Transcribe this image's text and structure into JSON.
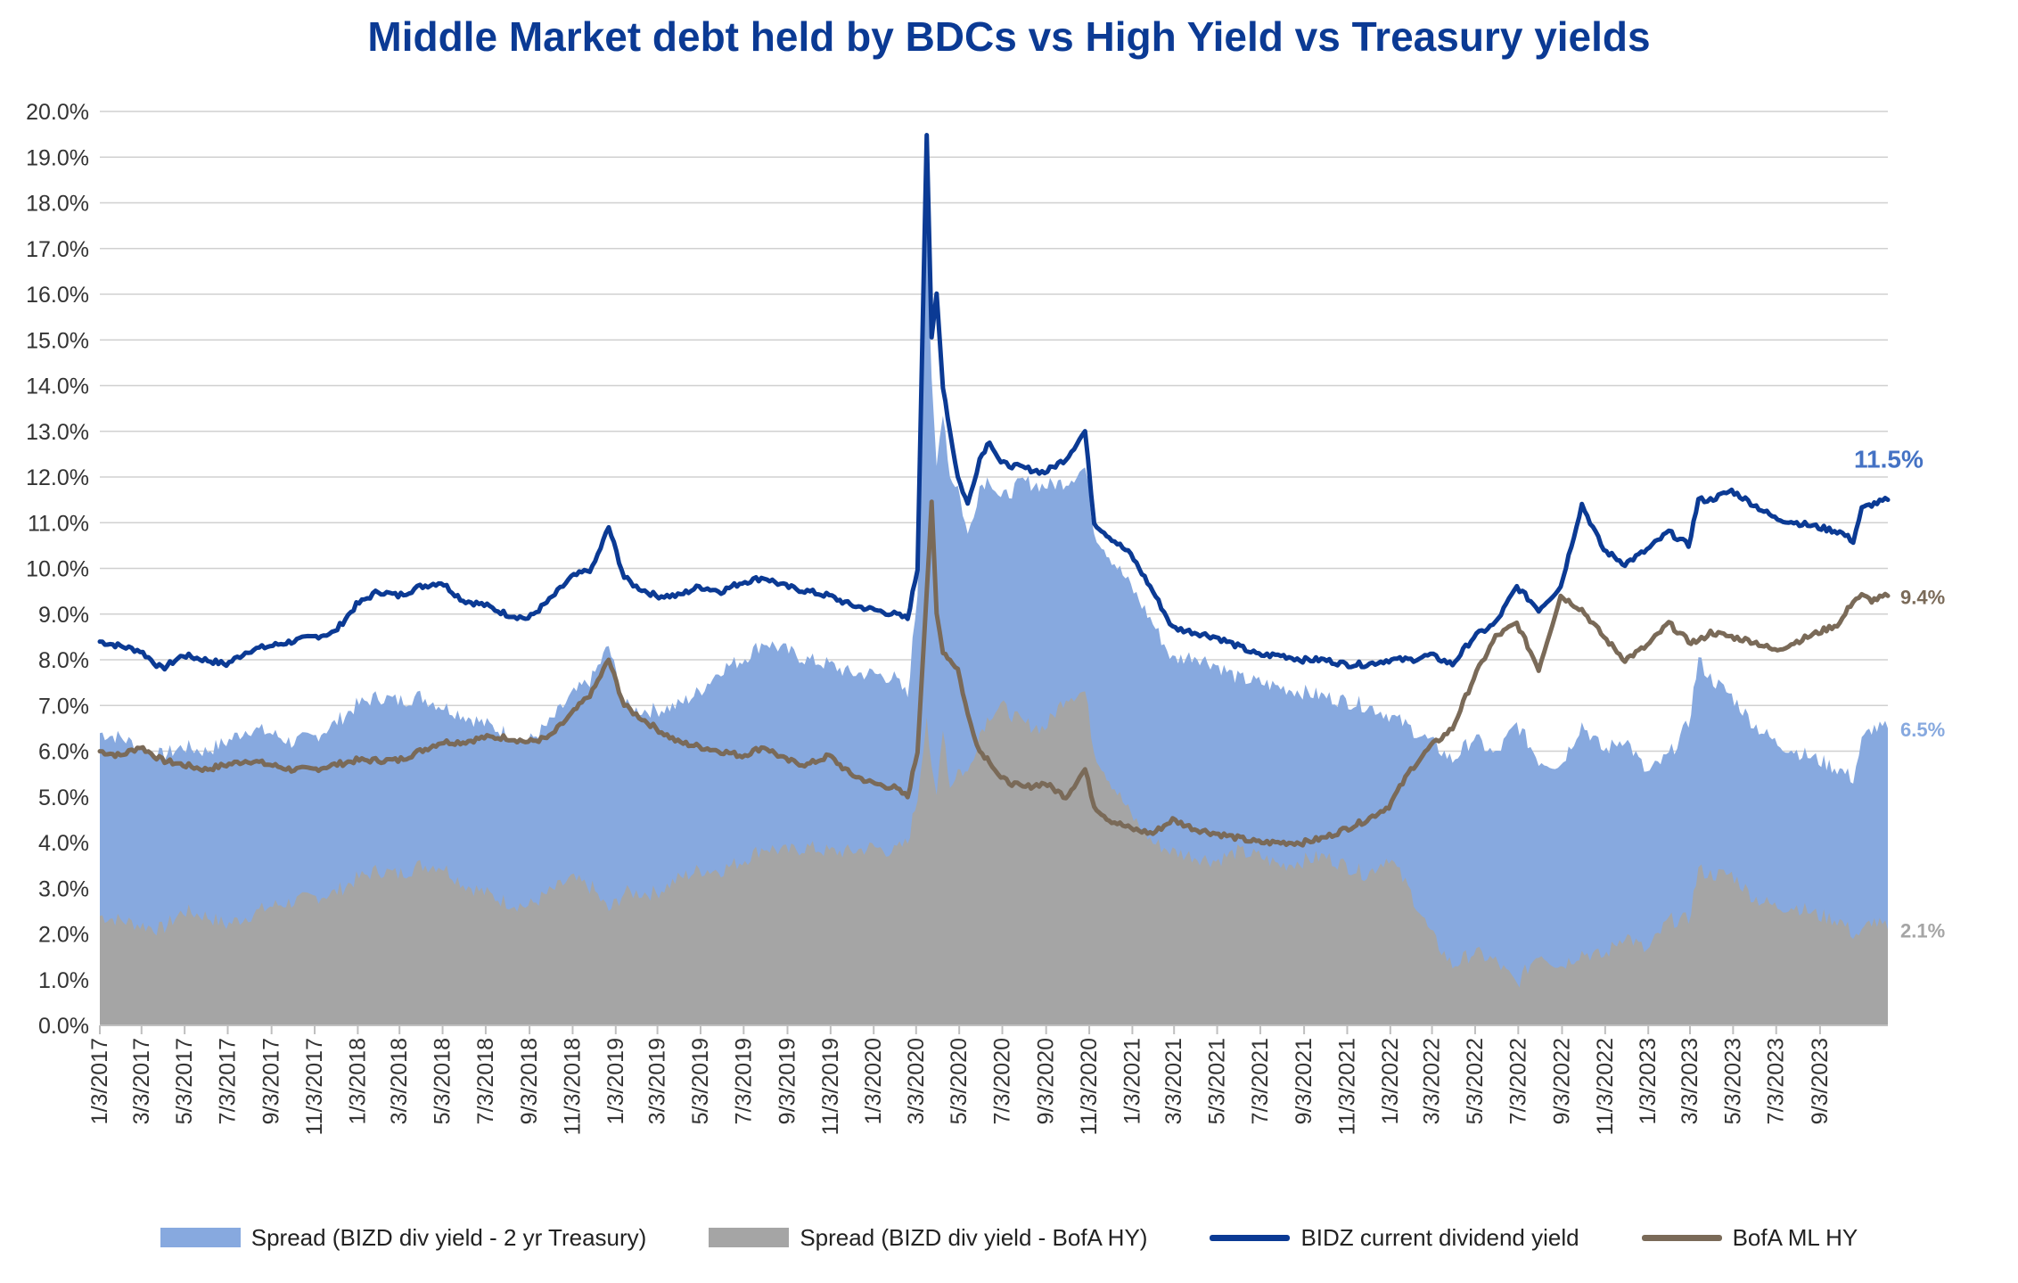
{
  "chart_data": {
    "type": "area",
    "title": "Middle Market debt held by BDCs vs High Yield vs Treasury yields",
    "ylim": [
      0,
      20
    ],
    "y_ticks": [
      "20.0%",
      "19.0%",
      "18.0%",
      "17.0%",
      "16.0%",
      "15.0%",
      "14.0%",
      "13.0%",
      "12.0%",
      "11.0%",
      "10.0%",
      "9.0%",
      "8.0%",
      "7.0%",
      "6.0%",
      "5.0%",
      "4.0%",
      "3.0%",
      "2.0%",
      "1.0%",
      "0.0%"
    ],
    "x_ticks": [
      "1/3/2017",
      "3/3/2017",
      "5/3/2017",
      "7/3/2017",
      "9/3/2017",
      "11/3/2017",
      "1/3/2018",
      "3/3/2018",
      "5/3/2018",
      "7/3/2018",
      "9/3/2018",
      "11/3/2018",
      "1/3/2019",
      "3/3/2019",
      "5/3/2019",
      "7/3/2019",
      "9/3/2019",
      "11/3/2019",
      "1/3/2020",
      "3/3/2020",
      "5/3/2020",
      "7/3/2020",
      "9/3/2020",
      "11/3/2020",
      "1/3/2021",
      "3/3/2021",
      "5/3/2021",
      "7/3/2021",
      "9/3/2021",
      "11/3/2021",
      "1/3/2022",
      "3/3/2022",
      "5/3/2022",
      "7/3/2022",
      "9/3/2022",
      "11/3/2022",
      "1/3/2023",
      "3/3/2023",
      "5/3/2023",
      "7/3/2023",
      "9/3/2023"
    ],
    "x_range": [
      "1/3/2017",
      "12/8/2023"
    ],
    "grid": true,
    "legend_position": "bottom",
    "series": [
      {
        "name": "Spread (BIZD div yield - 2 yr Treasury)",
        "kind": "area",
        "color": "#87A9DF",
        "x": [
          "1/3/2017",
          "2/1/2017",
          "3/1/2017",
          "4/1/2017",
          "5/1/2017",
          "6/1/2017",
          "7/1/2017",
          "8/1/2017",
          "9/1/2017",
          "10/1/2017",
          "11/1/2017",
          "12/1/2017",
          "1/1/2018",
          "2/1/2018",
          "3/1/2018",
          "4/1/2018",
          "5/1/2018",
          "6/1/2018",
          "7/1/2018",
          "8/1/2018",
          "9/1/2018",
          "10/1/2018",
          "11/1/2018",
          "12/1/2018",
          "12/24/2018",
          "1/15/2019",
          "2/1/2019",
          "3/1/2019",
          "4/1/2019",
          "5/1/2019",
          "6/1/2019",
          "7/1/2019",
          "8/1/2019",
          "9/1/2019",
          "10/1/2019",
          "11/1/2019",
          "12/1/2019",
          "1/1/2020",
          "2/1/2020",
          "2/20/2020",
          "3/5/2020",
          "3/18/2020",
          "3/25/2020",
          "4/1/2020",
          "4/10/2020",
          "4/20/2020",
          "5/1/2020",
          "5/15/2020",
          "6/1/2020",
          "6/15/2020",
          "7/1/2020",
          "8/1/2020",
          "9/1/2020",
          "10/1/2020",
          "10/28/2020",
          "11/10/2020",
          "12/1/2020",
          "1/1/2021",
          "2/1/2021",
          "3/1/2021",
          "4/1/2021",
          "5/1/2021",
          "6/1/2021",
          "7/1/2021",
          "8/1/2021",
          "9/1/2021",
          "10/1/2021",
          "11/1/2021",
          "12/1/2021",
          "1/1/2022",
          "2/1/2022",
          "3/1/2022",
          "4/1/2022",
          "5/1/2022",
          "6/1/2022",
          "7/1/2022",
          "8/1/2022",
          "9/1/2022",
          "10/1/2022",
          "11/1/2022",
          "12/1/2022",
          "1/1/2023",
          "2/1/2023",
          "3/1/2023",
          "3/15/2023",
          "4/1/2023",
          "5/1/2023",
          "6/1/2023",
          "7/1/2023",
          "8/1/2023",
          "9/1/2023",
          "10/1/2023",
          "10/20/2023",
          "11/1/2023",
          "11/15/2023",
          "12/8/2023"
        ],
        "values": [
          6.4,
          6.3,
          6.1,
          5.9,
          6.1,
          6.0,
          6.2,
          6.5,
          6.4,
          6.2,
          6.3,
          6.6,
          7.0,
          7.2,
          7.1,
          7.2,
          7.0,
          6.8,
          6.6,
          6.4,
          6.2,
          6.6,
          7.2,
          7.6,
          8.3,
          7.0,
          6.9,
          6.9,
          7.0,
          7.3,
          7.8,
          8.0,
          8.4,
          8.2,
          8.0,
          7.9,
          7.7,
          7.7,
          7.6,
          7.2,
          9.5,
          17.5,
          14.0,
          12.2,
          13.5,
          12.0,
          11.8,
          10.7,
          11.8,
          12.0,
          11.5,
          11.9,
          11.8,
          11.9,
          12.2,
          10.8,
          10.3,
          9.6,
          8.8,
          8.0,
          8.1,
          7.9,
          7.6,
          7.5,
          7.4,
          7.3,
          7.2,
          7.1,
          7.0,
          6.8,
          6.5,
          6.2,
          5.8,
          6.3,
          5.9,
          6.6,
          5.8,
          5.7,
          6.6,
          6.0,
          6.3,
          5.5,
          5.9,
          6.6,
          8.0,
          7.6,
          7.2,
          6.6,
          6.2,
          6.0,
          5.8,
          5.6,
          5.4,
          6.2,
          6.5,
          6.5
        ]
      },
      {
        "name": "Spread (BIZD div yield - BofA HY)",
        "kind": "area",
        "color": "#A5A5A5",
        "x": [
          "1/3/2017",
          "2/1/2017",
          "3/1/2017",
          "4/1/2017",
          "5/1/2017",
          "6/1/2017",
          "7/1/2017",
          "8/1/2017",
          "9/1/2017",
          "10/1/2017",
          "11/1/2017",
          "12/1/2017",
          "1/1/2018",
          "2/1/2018",
          "3/1/2018",
          "4/1/2018",
          "5/1/2018",
          "6/1/2018",
          "7/1/2018",
          "8/1/2018",
          "9/1/2018",
          "10/1/2018",
          "11/1/2018",
          "12/1/2018",
          "12/24/2018",
          "1/15/2019",
          "2/1/2019",
          "3/1/2019",
          "4/1/2019",
          "5/1/2019",
          "6/1/2019",
          "7/1/2019",
          "8/1/2019",
          "9/1/2019",
          "10/1/2019",
          "11/1/2019",
          "12/1/2019",
          "1/1/2020",
          "2/1/2020",
          "2/20/2020",
          "3/5/2020",
          "3/18/2020",
          "3/25/2020",
          "4/1/2020",
          "4/10/2020",
          "4/20/2020",
          "5/1/2020",
          "5/15/2020",
          "6/1/2020",
          "6/15/2020",
          "7/1/2020",
          "8/1/2020",
          "9/1/2020",
          "10/1/2020",
          "10/28/2020",
          "11/10/2020",
          "12/1/2020",
          "1/1/2021",
          "2/1/2021",
          "3/1/2021",
          "4/1/2021",
          "5/1/2021",
          "6/1/2021",
          "7/1/2021",
          "8/1/2021",
          "9/1/2021",
          "10/1/2021",
          "11/1/2021",
          "12/1/2021",
          "1/1/2022",
          "2/1/2022",
          "3/1/2022",
          "4/1/2022",
          "5/1/2022",
          "6/1/2022",
          "7/1/2022",
          "8/1/2022",
          "9/1/2022",
          "10/1/2022",
          "11/1/2022",
          "12/1/2022",
          "1/1/2023",
          "2/1/2023",
          "3/1/2023",
          "3/15/2023",
          "4/1/2023",
          "5/1/2023",
          "6/1/2023",
          "7/1/2023",
          "8/1/2023",
          "9/1/2023",
          "10/1/2023",
          "10/20/2023",
          "11/1/2023",
          "11/15/2023",
          "12/8/2023"
        ],
        "values": [
          2.4,
          2.3,
          2.2,
          2.1,
          2.5,
          2.4,
          2.2,
          2.4,
          2.6,
          2.7,
          2.8,
          2.9,
          3.2,
          3.4,
          3.3,
          3.5,
          3.5,
          3.1,
          2.9,
          2.7,
          2.6,
          2.9,
          3.2,
          3.0,
          2.5,
          2.9,
          2.9,
          2.9,
          3.2,
          3.4,
          3.4,
          3.6,
          3.9,
          3.8,
          3.9,
          3.8,
          3.8,
          3.9,
          3.8,
          4.0,
          5.0,
          6.8,
          5.5,
          5.0,
          6.6,
          5.2,
          5.6,
          5.5,
          6.4,
          6.8,
          7.0,
          6.6,
          6.5,
          7.2,
          7.3,
          6.0,
          5.4,
          4.6,
          4.0,
          3.8,
          3.7,
          3.6,
          3.8,
          3.7,
          3.5,
          3.6,
          3.7,
          3.5,
          3.3,
          3.7,
          2.9,
          2.0,
          1.3,
          1.6,
          1.4,
          0.9,
          1.6,
          1.3,
          1.6,
          1.5,
          2.0,
          1.6,
          2.3,
          2.3,
          3.4,
          3.3,
          3.3,
          2.8,
          2.6,
          2.6,
          2.4,
          2.3,
          2.0,
          2.0,
          2.3,
          2.1
        ]
      },
      {
        "name": "BIDZ current dividend yield",
        "kind": "line",
        "color": "#0B3A94",
        "x": [
          "1/3/2017",
          "2/1/2017",
          "3/1/2017",
          "4/1/2017",
          "5/1/2017",
          "6/1/2017",
          "7/1/2017",
          "8/1/2017",
          "9/1/2017",
          "10/1/2017",
          "11/1/2017",
          "12/1/2017",
          "1/1/2018",
          "2/1/2018",
          "3/1/2018",
          "4/1/2018",
          "5/1/2018",
          "6/1/2018",
          "7/1/2018",
          "8/1/2018",
          "9/1/2018",
          "10/1/2018",
          "11/1/2018",
          "12/1/2018",
          "12/24/2018",
          "1/15/2019",
          "2/1/2019",
          "3/1/2019",
          "4/1/2019",
          "5/1/2019",
          "6/1/2019",
          "7/1/2019",
          "8/1/2019",
          "9/1/2019",
          "10/1/2019",
          "11/1/2019",
          "12/1/2019",
          "1/1/2020",
          "2/1/2020",
          "2/20/2020",
          "3/5/2020",
          "3/18/2020",
          "3/25/2020",
          "4/1/2020",
          "4/10/2020",
          "4/20/2020",
          "5/1/2020",
          "5/15/2020",
          "6/1/2020",
          "6/15/2020",
          "7/1/2020",
          "8/1/2020",
          "9/1/2020",
          "10/1/2020",
          "10/28/2020",
          "11/10/2020",
          "12/1/2020",
          "1/1/2021",
          "2/1/2021",
          "3/1/2021",
          "4/1/2021",
          "5/1/2021",
          "6/1/2021",
          "7/1/2021",
          "8/1/2021",
          "9/1/2021",
          "10/1/2021",
          "11/1/2021",
          "12/1/2021",
          "1/1/2022",
          "2/1/2022",
          "3/1/2022",
          "4/1/2022",
          "5/1/2022",
          "6/1/2022",
          "7/1/2022",
          "8/1/2022",
          "9/1/2022",
          "10/1/2022",
          "11/1/2022",
          "12/1/2022",
          "1/1/2023",
          "2/1/2023",
          "3/1/2023",
          "3/15/2023",
          "4/1/2023",
          "5/1/2023",
          "6/1/2023",
          "7/1/2023",
          "8/1/2023",
          "9/1/2023",
          "10/1/2023",
          "10/20/2023",
          "11/1/2023",
          "11/15/2023",
          "12/8/2023"
        ],
        "values": [
          8.4,
          8.3,
          8.2,
          7.8,
          8.1,
          8.0,
          7.9,
          8.2,
          8.3,
          8.4,
          8.5,
          8.6,
          9.2,
          9.5,
          9.4,
          9.6,
          9.7,
          9.3,
          9.2,
          9.0,
          8.9,
          9.3,
          9.8,
          10.0,
          10.9,
          9.8,
          9.6,
          9.4,
          9.4,
          9.6,
          9.5,
          9.7,
          9.8,
          9.6,
          9.5,
          9.4,
          9.2,
          9.1,
          9.0,
          8.9,
          10.0,
          19.5,
          15.0,
          16.0,
          14.0,
          13.0,
          12.0,
          11.4,
          12.4,
          12.8,
          12.3,
          12.2,
          12.1,
          12.4,
          13.0,
          11.0,
          10.7,
          10.3,
          9.5,
          8.7,
          8.6,
          8.5,
          8.3,
          8.1,
          8.1,
          8.0,
          8.0,
          7.9,
          7.9,
          8.0,
          8.0,
          8.1,
          7.9,
          8.5,
          8.8,
          9.6,
          9.1,
          9.6,
          11.4,
          10.4,
          10.1,
          10.4,
          10.8,
          10.5,
          11.5,
          11.5,
          11.7,
          11.4,
          11.1,
          11.0,
          10.9,
          10.8,
          10.6,
          11.3,
          11.4,
          11.5
        ]
      },
      {
        "name": "BofA ML HY",
        "kind": "line",
        "color": "#7A6A58",
        "x": [
          "1/3/2017",
          "2/1/2017",
          "3/1/2017",
          "4/1/2017",
          "5/1/2017",
          "6/1/2017",
          "7/1/2017",
          "8/1/2017",
          "9/1/2017",
          "10/1/2017",
          "11/1/2017",
          "12/1/2017",
          "1/1/2018",
          "2/1/2018",
          "3/1/2018",
          "4/1/2018",
          "5/1/2018",
          "6/1/2018",
          "7/1/2018",
          "8/1/2018",
          "9/1/2018",
          "10/1/2018",
          "11/1/2018",
          "12/1/2018",
          "12/24/2018",
          "1/15/2019",
          "2/1/2019",
          "3/1/2019",
          "4/1/2019",
          "5/1/2019",
          "6/1/2019",
          "7/1/2019",
          "8/1/2019",
          "9/1/2019",
          "10/1/2019",
          "11/1/2019",
          "12/1/2019",
          "1/1/2020",
          "2/1/2020",
          "2/20/2020",
          "3/5/2020",
          "3/18/2020",
          "3/25/2020",
          "4/1/2020",
          "4/10/2020",
          "4/20/2020",
          "5/1/2020",
          "5/15/2020",
          "6/1/2020",
          "6/15/2020",
          "7/1/2020",
          "8/1/2020",
          "9/1/2020",
          "10/1/2020",
          "10/28/2020",
          "11/10/2020",
          "12/1/2020",
          "1/1/2021",
          "2/1/2021",
          "3/1/2021",
          "4/1/2021",
          "5/1/2021",
          "6/1/2021",
          "7/1/2021",
          "8/1/2021",
          "9/1/2021",
          "10/1/2021",
          "11/1/2021",
          "12/1/2021",
          "1/1/2022",
          "2/1/2022",
          "3/1/2022",
          "4/1/2022",
          "5/1/2022",
          "6/1/2022",
          "7/1/2022",
          "8/1/2022",
          "9/1/2022",
          "10/1/2022",
          "11/1/2022",
          "12/1/2022",
          "1/1/2023",
          "2/1/2023",
          "3/1/2023",
          "3/15/2023",
          "4/1/2023",
          "5/1/2023",
          "6/1/2023",
          "7/1/2023",
          "8/1/2023",
          "9/1/2023",
          "10/1/2023",
          "10/20/2023",
          "11/1/2023",
          "11/15/2023",
          "12/8/2023"
        ],
        "values": [
          6.0,
          5.9,
          6.1,
          5.8,
          5.7,
          5.6,
          5.7,
          5.8,
          5.7,
          5.6,
          5.6,
          5.7,
          5.8,
          5.8,
          5.8,
          6.0,
          6.2,
          6.2,
          6.3,
          6.3,
          6.2,
          6.3,
          6.8,
          7.3,
          8.0,
          7.0,
          6.8,
          6.5,
          6.2,
          6.1,
          6.0,
          5.9,
          6.1,
          5.8,
          5.7,
          5.9,
          5.5,
          5.3,
          5.2,
          5.0,
          6.0,
          9.5,
          11.4,
          9.0,
          8.2,
          8.0,
          7.8,
          6.8,
          6.0,
          5.8,
          5.4,
          5.2,
          5.3,
          5.0,
          5.6,
          4.8,
          4.5,
          4.3,
          4.2,
          4.5,
          4.3,
          4.2,
          4.1,
          4.0,
          4.0,
          4.0,
          4.1,
          4.3,
          4.5,
          4.8,
          5.6,
          6.1,
          6.5,
          7.6,
          8.5,
          8.8,
          7.8,
          9.4,
          9.1,
          8.5,
          8.0,
          8.3,
          8.8,
          8.4,
          8.4,
          8.6,
          8.5,
          8.4,
          8.2,
          8.4,
          8.6,
          8.8,
          9.3,
          9.4,
          9.3,
          9.4
        ]
      }
    ],
    "end_labels": [
      {
        "text": "11.5%",
        "series": "BIDZ current dividend yield",
        "color": "#4472C4"
      },
      {
        "text": "9.4%",
        "series": "BofA ML HY",
        "color": "#7A6A58"
      },
      {
        "text": "6.5%",
        "series": "Spread (BIZD div yield - 2 yr Treasury)",
        "color": "#87A9DF"
      },
      {
        "text": "2.1%",
        "series": "Spread (BIZD div yield - BofA HY)",
        "color": "#A5A5A5"
      }
    ],
    "title_color": "#0B3A94",
    "gridline_color": "#D0D0D0",
    "axis_text_color": "#333333"
  }
}
